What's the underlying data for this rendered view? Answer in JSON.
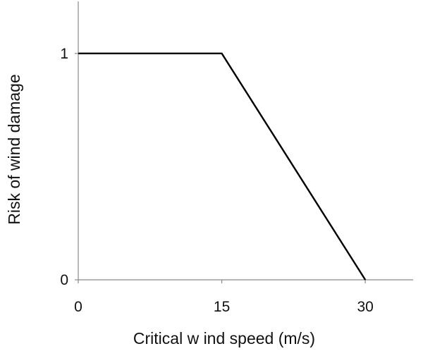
{
  "chart_data": {
    "type": "line",
    "title": "",
    "xlabel": "Critical w ind speed (m/s)",
    "ylabel": "Risk of wind damage",
    "xlim": [
      0,
      35
    ],
    "ylim": [
      0,
      1.23
    ],
    "xticks": [
      0,
      15,
      30
    ],
    "xtick_labels": [
      "0",
      "15",
      "30"
    ],
    "yticks": [
      0,
      1
    ],
    "ytick_labels": [
      "0",
      "1"
    ],
    "grid": false,
    "legend": "none",
    "series": [
      {
        "x": [
          0,
          15,
          30
        ],
        "y": [
          1,
          1,
          0
        ],
        "color": "#000000"
      }
    ]
  }
}
